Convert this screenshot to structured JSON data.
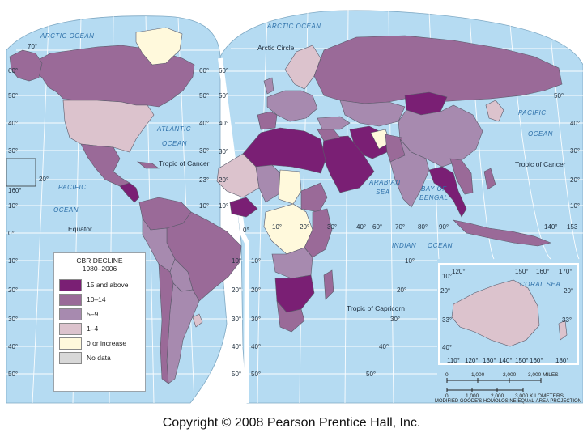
{
  "legend": {
    "title_line1": "CBR DECLINE",
    "title_line2": "1980–2006",
    "items": [
      {
        "label": "15 and above",
        "color": "#7a1f74"
      },
      {
        "label": "10–14",
        "color": "#9a6a98"
      },
      {
        "label": "5–9",
        "color": "#a78aaf"
      },
      {
        "label": "1–4",
        "color": "#dcc3cd"
      },
      {
        "label": "0 or increase",
        "color": "#fff9dc"
      },
      {
        "label": "No data",
        "color": "#d8d8d8"
      }
    ]
  },
  "colors": {
    "ocean": "#b5dbf2",
    "grid": "#ffffff",
    "border": "#5a5a6a"
  },
  "labels": {
    "arctic_ocean_w": "ARCTIC OCEAN",
    "arctic_ocean_e": "ARCTIC OCEAN",
    "arctic_circle": "Arctic Circle",
    "atlantic_1": "ATLANTIC",
    "atlantic_2": "OCEAN",
    "pacific_w_1": "PACIFIC",
    "pacific_w_2": "OCEAN",
    "pacific_e_1": "PACIFIC",
    "pacific_e_2": "OCEAN",
    "indian_1": "INDIAN",
    "indian_2": "OCEAN",
    "arabian_1": "ARABIAN",
    "arabian_2": "SEA",
    "bengal_1": "BAY OF",
    "bengal_2": "BENGAL",
    "coral_sea": "CORAL SEA",
    "tropic_cancer_w": "Tropic of Cancer",
    "tropic_cancer_e": "Tropic of Cancer",
    "equator": "Equator",
    "tropic_capricorn": "Tropic of Capricorn"
  },
  "degrees": {
    "d70a": "70°",
    "d60a": "60°",
    "d50a": "50°",
    "d40a": "40°",
    "d30a": "30°",
    "d20a": "20°",
    "d10a": "10°",
    "d0a": "0°",
    "d10s": "10°",
    "d20s": "20°",
    "d30s": "30°",
    "d40s": "40°",
    "d50s": "50°",
    "d160": "160°",
    "d20w": "20°",
    "d10w": "10°",
    "d0w": "0°",
    "d60": "60°",
    "d50": "50°",
    "d40": "40°",
    "d30": "30°",
    "d20": "20°",
    "d23": "23°",
    "d10": "10°",
    "d50r": "50°",
    "d40r": "40°",
    "d30r": "30°",
    "d20r": "20°",
    "d10r": "10°",
    "m0": "0°",
    "m10": "10°",
    "m20": "20°",
    "m30": "30°",
    "m40": "40°",
    "m50": "50°",
    "e60": "60°",
    "e70": "70°",
    "e80": "80°",
    "e90": "90°",
    "e140": "140°",
    "e153": "153",
    "s10": "10°",
    "s20": "20°",
    "s30": "30°",
    "s40": "40°",
    "s50": "50°",
    "i120": "120°",
    "i150": "150°",
    "i160": "160°",
    "i170": "170°",
    "i10": "10°",
    "i20": "20°",
    "i33": "33°",
    "i40": "40°",
    "b110": "110°",
    "b120": "120°",
    "b130": "130°",
    "b140": "140°",
    "b150": "150°",
    "b160": "160°",
    "b180": "180°"
  },
  "scale": {
    "m0": "0",
    "m1000": "1,000",
    "m2000": "2,000",
    "m3000": "3,000 MILES",
    "k0": "0",
    "k1000": "1,000",
    "k2000": "2,000",
    "k3000": "3,000 KILOMETERS",
    "projection": "MODIFIED GOODE'S HOMOLOSINE EQUAL-AREA PROJECTION"
  },
  "footer": {
    "copyright": "Copyright © 2008 Pearson Prentice Hall, Inc."
  }
}
